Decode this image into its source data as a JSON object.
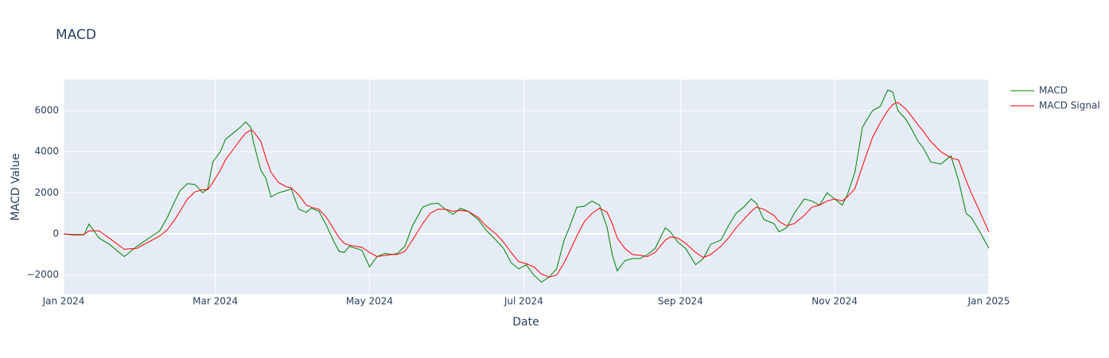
{
  "chart_data": {
    "type": "line",
    "title": "MACD",
    "x_label": "Date",
    "y_label": "MACD Value",
    "x": [
      0,
      4,
      8,
      10,
      14,
      18,
      24,
      29,
      35,
      38,
      41,
      44,
      46,
      49,
      52,
      55,
      57,
      59,
      62,
      64,
      67,
      70,
      72,
      74,
      75,
      78,
      80,
      82,
      85,
      88,
      90,
      93,
      96,
      98,
      101,
      104,
      107,
      109,
      111,
      113,
      118,
      121,
      124,
      127,
      130,
      132,
      135,
      138,
      142,
      145,
      148,
      151,
      154,
      157,
      160,
      164,
      167,
      171,
      174,
      177,
      180,
      183,
      186,
      189,
      192,
      195,
      198,
      200,
      203,
      206,
      209,
      212,
      215,
      217,
      219,
      222,
      225,
      228,
      231,
      234,
      238,
      240,
      243,
      246,
      250,
      253,
      256,
      260,
      263,
      266,
      269,
      272,
      274,
      277,
      281,
      283,
      286,
      289,
      293,
      296,
      299,
      302,
      305,
      308,
      310,
      313,
      316,
      320,
      323,
      326,
      328,
      330,
      333,
      335,
      338,
      340,
      343,
      347,
      351,
      354,
      357,
      359,
      362,
      366
    ],
    "series": [
      {
        "name": "MACD",
        "color": "green",
        "values": [
          0,
          -50,
          -50,
          480,
          -200,
          -500,
          -1100,
          -600,
          -100,
          150,
          800,
          1600,
          2100,
          2450,
          2400,
          2000,
          2200,
          3500,
          4000,
          4600,
          4900,
          5200,
          5450,
          5200,
          4500,
          3100,
          2700,
          1800,
          2000,
          2100,
          2200,
          1200,
          1050,
          1250,
          1100,
          400,
          -400,
          -850,
          -900,
          -600,
          -800,
          -1600,
          -1100,
          -950,
          -1000,
          -950,
          -600,
          400,
          1300,
          1450,
          1500,
          1200,
          950,
          1250,
          1100,
          700,
          200,
          -300,
          -700,
          -1400,
          -1700,
          -1500,
          -2000,
          -2350,
          -2100,
          -1700,
          -300,
          300,
          1300,
          1350,
          1600,
          1400,
          300,
          -1000,
          -1800,
          -1300,
          -1200,
          -1200,
          -1000,
          -700,
          300,
          100,
          -400,
          -700,
          -1500,
          -1200,
          -500,
          -300,
          400,
          1000,
          1300,
          1700,
          1500,
          700,
          500,
          100,
          300,
          1000,
          1700,
          1600,
          1400,
          2000,
          1700,
          1400,
          1900,
          3000,
          5200,
          6000,
          6200,
          7000,
          6900,
          6000,
          5600,
          5200,
          4500,
          4200,
          3500,
          3400,
          3800,
          2600,
          1000,
          800,
          200,
          -700
        ]
      },
      {
        "name": "MACD Signal",
        "color": "red",
        "values": [
          0,
          -30,
          -30,
          150,
          150,
          -200,
          -750,
          -700,
          -300,
          -100,
          200,
          700,
          1100,
          1700,
          2050,
          2150,
          2150,
          2500,
          3100,
          3600,
          4100,
          4600,
          4900,
          5050,
          5000,
          4500,
          3700,
          3000,
          2500,
          2300,
          2250,
          1900,
          1400,
          1300,
          1200,
          800,
          200,
          -200,
          -450,
          -550,
          -650,
          -900,
          -1100,
          -1050,
          -1000,
          -1000,
          -850,
          -300,
          500,
          1000,
          1200,
          1200,
          1100,
          1150,
          1100,
          800,
          400,
          0,
          -400,
          -900,
          -1350,
          -1450,
          -1600,
          -1950,
          -2100,
          -2000,
          -1400,
          -900,
          -100,
          600,
          1000,
          1250,
          1050,
          500,
          -200,
          -700,
          -1000,
          -1050,
          -1100,
          -900,
          -300,
          -150,
          -200,
          -450,
          -900,
          -1150,
          -1000,
          -600,
          -200,
          300,
          700,
          1100,
          1300,
          1200,
          900,
          600,
          400,
          500,
          900,
          1300,
          1400,
          1600,
          1700,
          1600,
          1800,
          2200,
          3300,
          4700,
          5400,
          6000,
          6300,
          6400,
          6100,
          5800,
          5300,
          5000,
          4500,
          4000,
          3700,
          3600,
          2600,
          2000,
          1200,
          100
        ]
      }
    ],
    "xlim": [
      0,
      366
    ],
    "xticks": [
      {
        "value": 0,
        "label": "Jan 2024"
      },
      {
        "value": 60,
        "label": "Mar 2024"
      },
      {
        "value": 121,
        "label": "May 2024"
      },
      {
        "value": 182,
        "label": "Jul 2024"
      },
      {
        "value": 244,
        "label": "Sep 2024"
      },
      {
        "value": 305,
        "label": "Nov 2024"
      },
      {
        "value": 366,
        "label": "Jan 2025"
      }
    ],
    "ylim": [
      -2940,
      7510
    ],
    "yticks": [
      {
        "value": -2000,
        "label": "−2000"
      },
      0,
      2000,
      4000,
      6000
    ],
    "grid": true,
    "legend": "top-right"
  }
}
